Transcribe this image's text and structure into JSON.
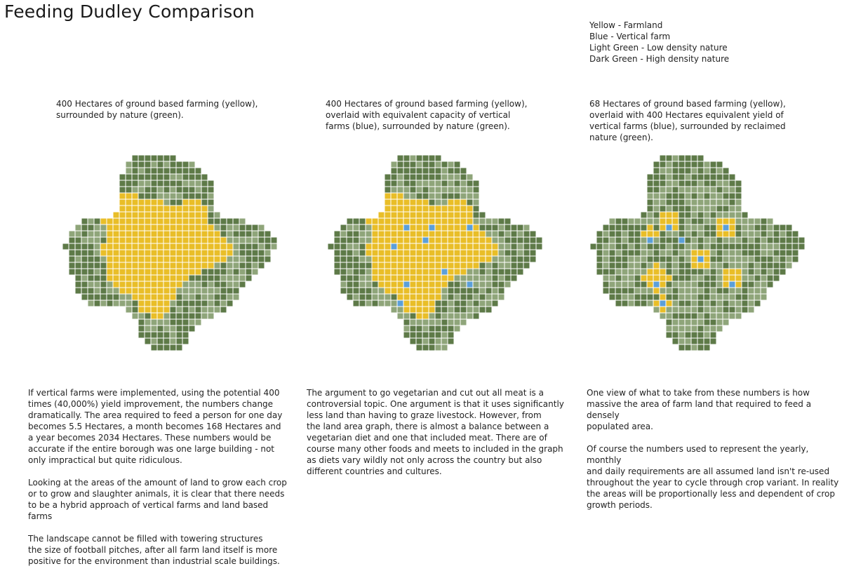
{
  "title": "Feeding Dudley Comparison",
  "legend": [
    "Yellow - Farmland",
    "Blue - Vertical farm",
    "Light Green - Low density nature",
    "Dark Green - High density nature"
  ],
  "colors": {
    "farmland": "#E9BE28",
    "vertical_farm": "#5B9FD9",
    "light_green": "#8FA57A",
    "dark_green": "#5E7A48",
    "cell_border": "#ffffff"
  },
  "panels": [
    {
      "caption": [
        "400 Hectares of ground based farming (yellow),",
        "surrounded by nature (green)."
      ],
      "map_name": "map-ground-farming"
    },
    {
      "caption": [
        "400 Hectares of ground based farming (yellow),",
        "overlaid with equivalent capacity of vertical",
        "farms (blue), surrounded by nature (green)."
      ],
      "map_name": "map-overlaid-vertical"
    },
    {
      "caption": [
        "68 Hectares of ground based farming (yellow),",
        "overlaid with 400 Hectares equivalent yield of",
        "vertical farms (blue), surrounded by reclaimed",
        "nature (green)."
      ],
      "map_name": "map-reclaimed-nature"
    }
  ],
  "paragraphs": {
    "col1": [
      [
        "If vertical farms were implemented, using the potential 400",
        "times (40,000%) yield improvement, the numbers change",
        "dramatically. The area required to feed a person for one day",
        "becomes 5.5 Hectares, a month becomes 168 Hectares and",
        "a year becomes 2034 Hectares. These numbers would be",
        "accurate if the entire borough was one large building - not",
        "only impractical but quite ridiculous."
      ],
      [
        "Looking at the areas of the amount of land to grow each crop",
        "or to grow and slaughter animals, it is clear that there needs",
        "to be a hybrid approach of vertical farms and land based",
        "farms"
      ],
      [
        "The landscape cannot be filled with towering structures",
        "the size of football pitches, after all farm land itself is more",
        "positive for the environment than industrial scale buildings."
      ]
    ],
    "col2": [
      [
        "The argument to go vegetarian and cut out all meat is a",
        "controversial topic. One argument is that it uses significantly",
        "less land than having to graze livestock. However, from",
        "the land area graph, there is almost a balance between a",
        "vegetarian diet and one that included meat. There are of",
        "course many other foods and meets to included in the graph",
        "as diets vary wildly not only across the country but also",
        "different countries and cultures."
      ]
    ],
    "col3": [
      [
        "One  view of what to take from these numbers is how",
        "massive the area of farm land that required to feed a densely",
        "populated area."
      ],
      [
        "Of course the numbers used to represent the yearly, monthly",
        "and daily requirements are all assumed land isn't re-used",
        "throughout the year to cycle through crop variant. In reality",
        "the areas will be proportionally less and dependent of crop",
        "growth periods."
      ]
    ]
  }
}
